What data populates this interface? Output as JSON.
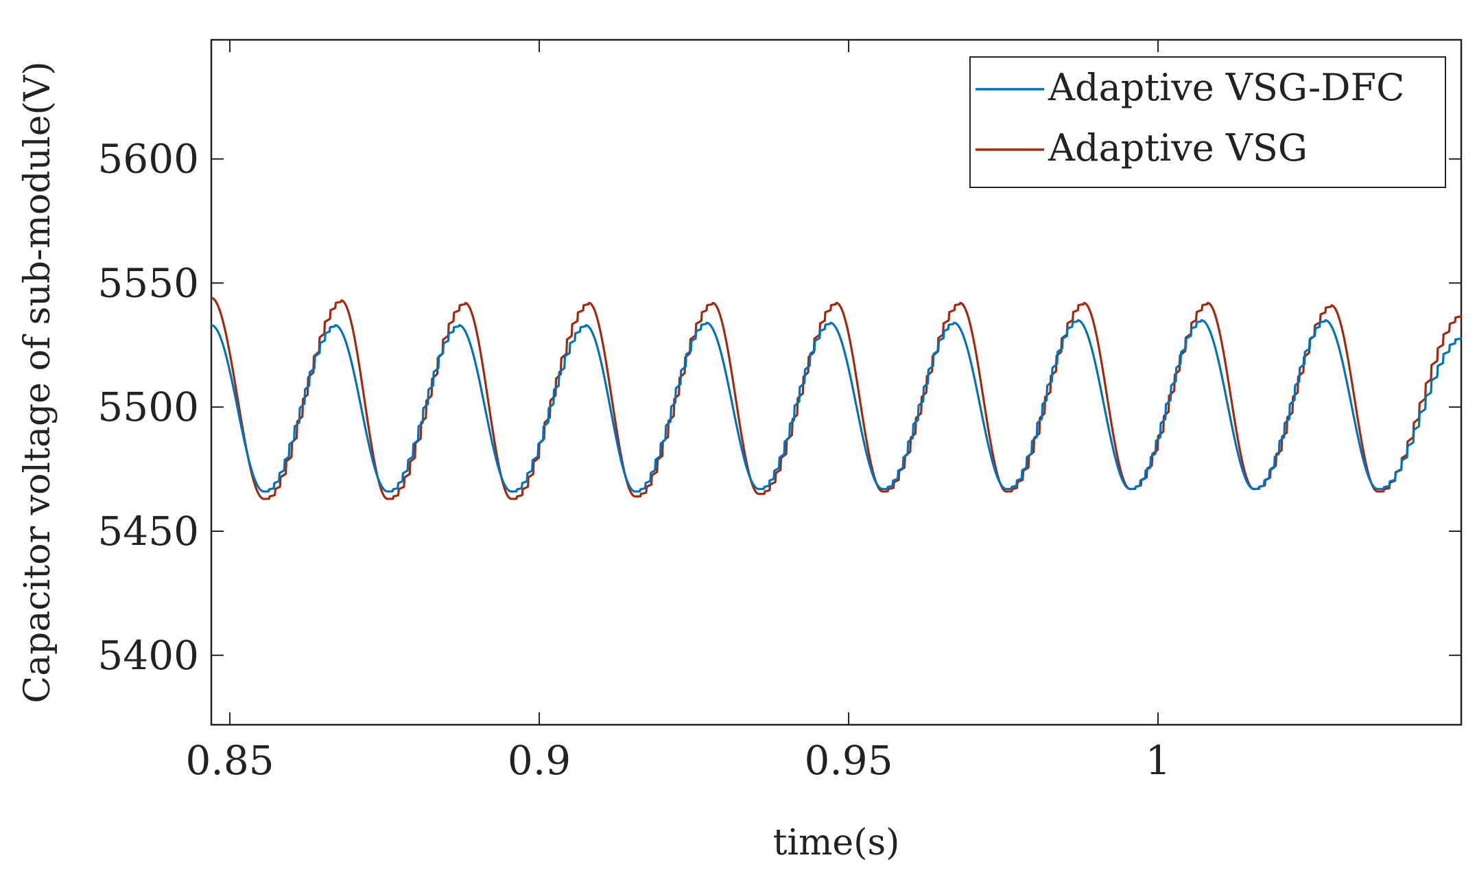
{
  "chart_data": {
    "type": "line",
    "title": "",
    "xlabel": "time(s)",
    "ylabel": "Capacitor voltage of sub-module(V)",
    "xlim": [
      0.847,
      1.049
    ],
    "ylim": [
      5372,
      5648
    ],
    "xticks": [
      0.85,
      0.9,
      0.95,
      1.0
    ],
    "xtick_labels": [
      "0.85",
      "0.9",
      "0.95",
      "1"
    ],
    "yticks": [
      5400,
      5450,
      5500,
      5550,
      5600
    ],
    "ytick_labels": [
      "5400",
      "5450",
      "5500",
      "5550",
      "5600"
    ],
    "grid": false,
    "legend_position": "top-right",
    "period_s": 0.02,
    "series": [
      {
        "name": "Adaptive VSG-DFC",
        "color": "#0072BD",
        "x": [
          0.847,
          0.8555,
          0.867,
          0.8755,
          0.887,
          0.8955,
          0.9075,
          0.9155,
          0.927,
          0.9355,
          0.947,
          0.9555,
          0.967,
          0.9755,
          0.987,
          0.9955,
          1.007,
          1.0155,
          1.027,
          1.0355,
          1.049
        ],
        "values": [
          5533,
          5466,
          5533,
          5466,
          5533,
          5466,
          5533,
          5466,
          5534,
          5467,
          5534,
          5467,
          5534,
          5467,
          5535,
          5467,
          5535,
          5467,
          5535,
          5467,
          5528
        ]
      },
      {
        "name": "Adaptive VSG",
        "color": "#A2280E",
        "x": [
          0.847,
          0.8555,
          0.868,
          0.8755,
          0.888,
          0.8955,
          0.908,
          0.9155,
          0.928,
          0.9355,
          0.948,
          0.9555,
          0.968,
          0.9755,
          0.988,
          0.9955,
          1.008,
          1.0155,
          1.028,
          1.0355,
          1.049
        ],
        "values": [
          5544,
          5463,
          5543,
          5463,
          5542,
          5463,
          5542,
          5464,
          5542,
          5465,
          5542,
          5466,
          5542,
          5466,
          5542,
          5467,
          5542,
          5467,
          5541,
          5466,
          5537
        ]
      }
    ]
  }
}
